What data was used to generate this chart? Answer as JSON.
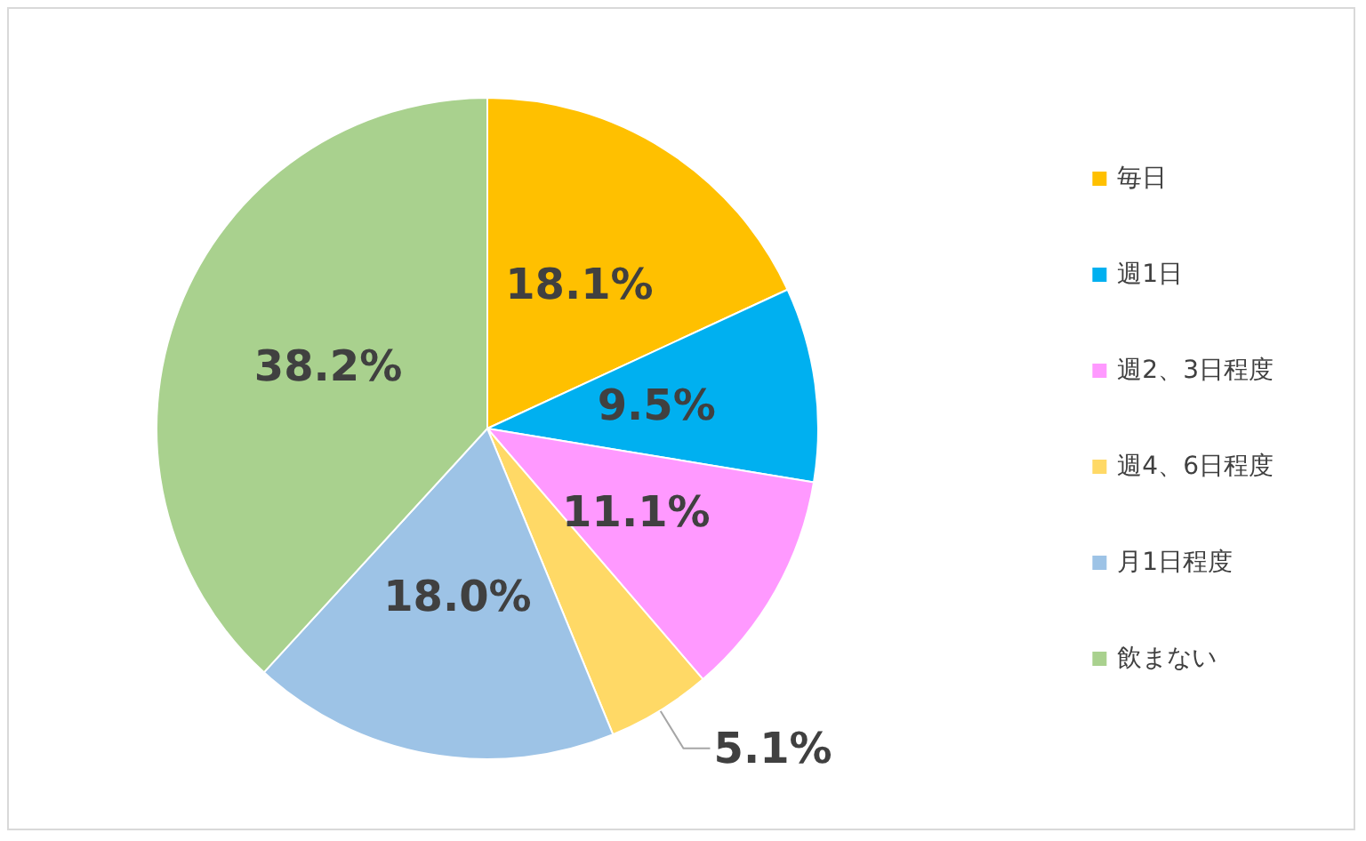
{
  "chart_data": {
    "type": "pie",
    "categories": [
      "毎日",
      "週1日",
      "週2、3日程度",
      "週4、6日程度",
      "月1日程度",
      "飲まない"
    ],
    "values": [
      18.1,
      9.5,
      11.1,
      5.1,
      18.0,
      38.2
    ],
    "colors": [
      "#ffc000",
      "#00b0f0",
      "#ff99ff",
      "#ffd966",
      "#9dc3e6",
      "#a9d18e"
    ],
    "value_labels": [
      "18.1%",
      "9.5%",
      "11.1%",
      "5.1%",
      "18.0%",
      "38.2%"
    ],
    "legend": "right"
  }
}
